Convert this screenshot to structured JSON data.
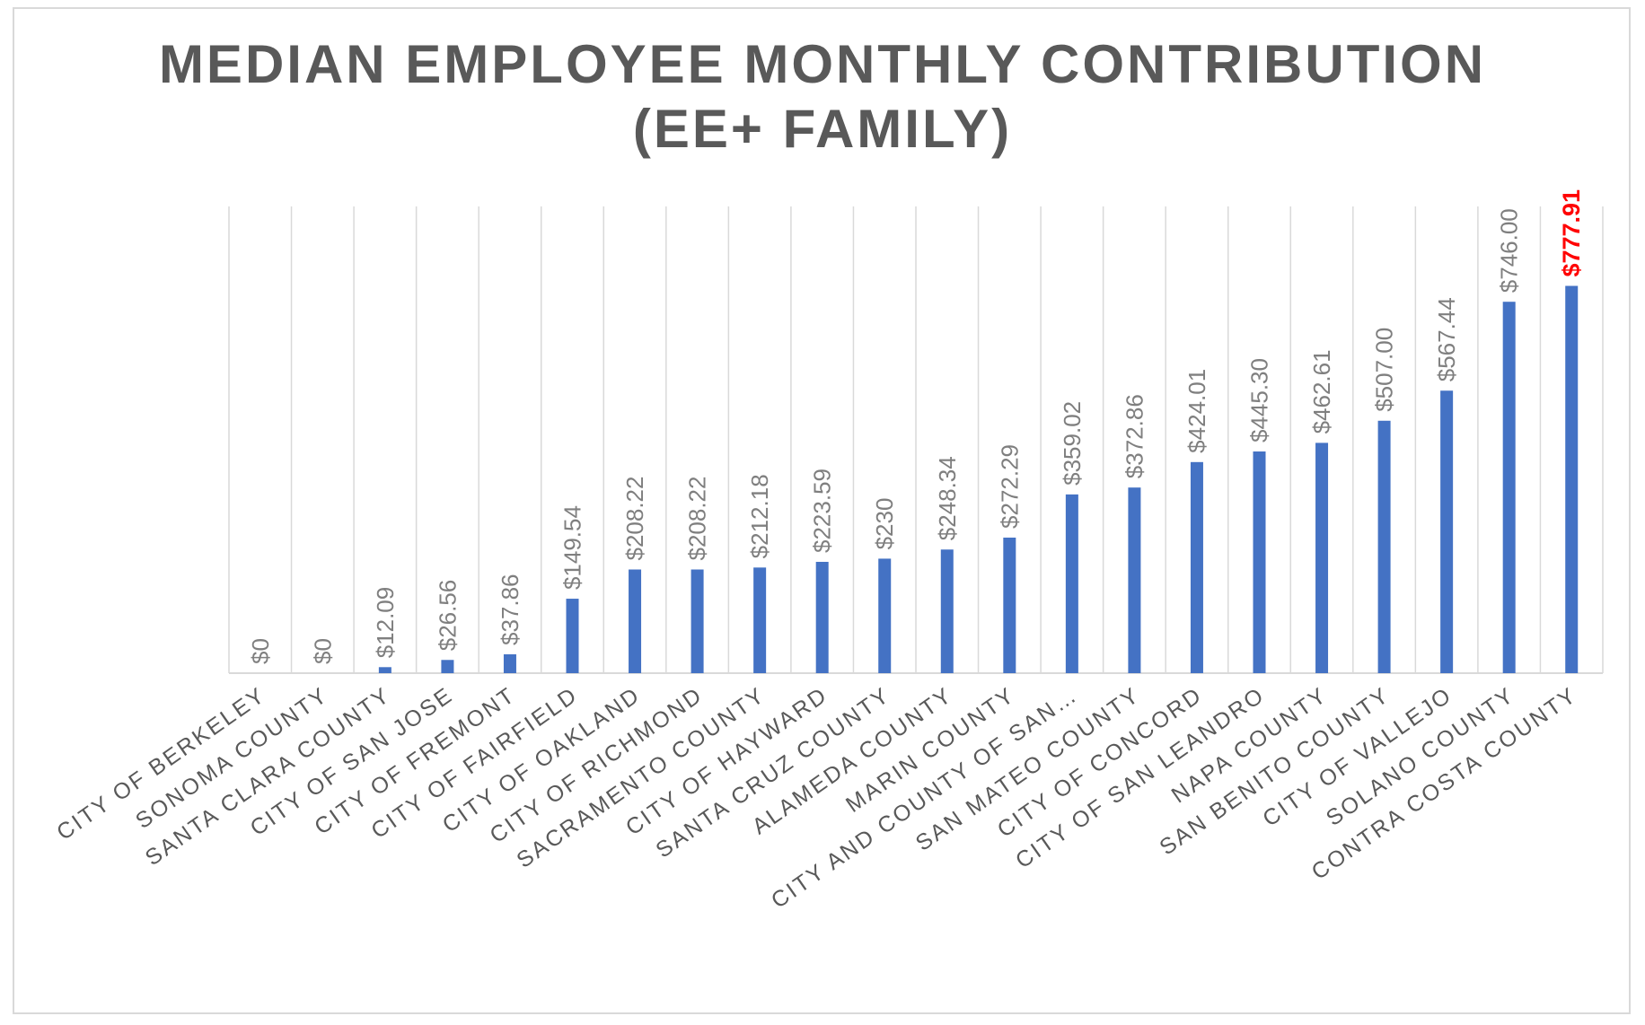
{
  "chart_data": {
    "type": "bar",
    "title_line1": "MEDIAN EMPLOYEE MONTHLY CONTRIBUTION",
    "title_line2": "(EE+ FAMILY)",
    "categories": [
      "CITY OF BERKELEY",
      "SONOMA COUNTY",
      "SANTA CLARA COUNTY",
      "CITY OF SAN JOSE",
      "CITY OF FREMONT",
      "CITY OF FAIRFIELD",
      "CITY OF OAKLAND",
      "CITY OF RICHMOND",
      "SACRAMENTO COUNTY",
      "CITY OF HAYWARD",
      "SANTA CRUZ COUNTY",
      "ALAMEDA COUNTY",
      "MARIN COUNTY",
      "CITY AND COUNTY OF SAN…",
      "SAN MATEO COUNTY",
      "CITY OF CONCORD",
      "CITY OF SAN LEANDRO",
      "NAPA COUNTY",
      "SAN BENITO COUNTY",
      "CITY OF VALLEJO",
      "SOLANO COUNTY",
      "CONTRA COSTA COUNTY"
    ],
    "values": [
      0,
      0,
      12.09,
      26.56,
      37.86,
      149.54,
      208.22,
      208.22,
      212.18,
      223.59,
      230,
      248.34,
      272.29,
      359.02,
      372.86,
      424.01,
      445.3,
      462.61,
      507.0,
      567.44,
      746.0,
      777.91
    ],
    "data_labels": [
      "$0",
      "$0",
      "$12.09",
      "$26.56",
      "$37.86",
      "$149.54",
      "$208.22",
      "$208.22",
      "$212.18",
      "$223.59",
      "$230",
      "$248.34",
      "$272.29",
      "$359.02",
      "$372.86",
      "$424.01",
      "$445.30",
      "$462.61",
      "$507.00",
      "$567.44",
      "$746.00",
      "$777.91"
    ],
    "highlight_index": 21,
    "ylim": [
      0,
      900
    ],
    "xlabel": "",
    "ylabel": "",
    "grid": "vertical",
    "legend": "none",
    "colors": {
      "bar": "#4472c4",
      "label": "#7f7f7f",
      "highlight_label": "#ff0000",
      "category": "#595959",
      "grid": "#d9d9d9",
      "title": "#595959"
    }
  }
}
